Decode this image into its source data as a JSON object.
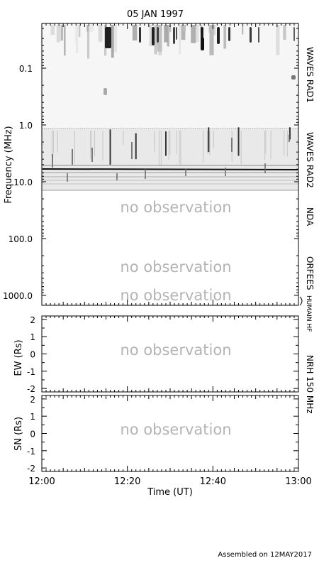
{
  "title": "05 JAN 1997",
  "footer": "Assembled on 12MAY2017",
  "no_observation_text": "no observation",
  "chart_data": [
    {
      "type": "heatmap",
      "name": "dynamic-spectrum",
      "ylabel": "Frequency (MHz)",
      "yscale": "log",
      "y_inverted": true,
      "y_ticks": [
        {
          "value": 0.1,
          "label": "0.1"
        },
        {
          "value": 1,
          "label": "1.0"
        },
        {
          "value": 10,
          "label": "10.0"
        },
        {
          "value": 100,
          "label": "100.0"
        },
        {
          "value": 1000,
          "label": "1000.0"
        }
      ],
      "bands": [
        {
          "instrument": "WAVES RAD1",
          "freq_range": [
            0.02,
            1.1
          ],
          "observed": true
        },
        {
          "instrument": "WAVES RAD2",
          "freq_range": [
            1.1,
            13.8
          ],
          "observed": true
        },
        {
          "instrument": "NDA",
          "freq_range": [
            13.8,
            70
          ],
          "observed": false
        },
        {
          "instrument": "ORFEES",
          "freq_range": [
            70,
            1000
          ],
          "observed": false
        },
        {
          "instrument": "HUMAIN HF",
          "freq_range": [
            1000,
            2000
          ],
          "observed": false
        }
      ],
      "bursts": [
        {
          "time": "12:16",
          "f_low": 1.2,
          "f_high": 5.0
        },
        {
          "time": "12:22",
          "f_low": 1.4,
          "f_high": 4.0
        },
        {
          "time": "12:29",
          "f_low": 1.3,
          "f_high": 3.5
        },
        {
          "time": "12:39",
          "f_low": 1.1,
          "f_high": 3.0
        },
        {
          "time": "12:46",
          "f_low": 1.1,
          "f_high": 3.5
        },
        {
          "time": "12:58",
          "f_low": 1.1,
          "f_high": 1.8
        }
      ]
    },
    {
      "type": "line",
      "name": "nrh-ew",
      "ylabel": "EW (Rs)",
      "ylim": [
        -2.2,
        2.2
      ],
      "y_ticks": [
        2,
        1,
        0,
        -1,
        -2
      ],
      "observed": false,
      "series": []
    },
    {
      "type": "line",
      "name": "nrh-sn",
      "ylabel": "SN (Rs)",
      "ylim": [
        -2.2,
        2.2
      ],
      "y_ticks": [
        2,
        1,
        0,
        -1,
        -2
      ],
      "observed": false,
      "series": []
    }
  ],
  "right_labels": [
    "WAVES RAD1",
    "WAVES RAD2",
    "NDA",
    "ORFEES",
    "HUMAIN HF",
    "NRH 150 MHz"
  ],
  "x_axis": {
    "label": "Time (UT)",
    "tick_labels": [
      "12:00",
      "12:20",
      "12:40",
      "13:00"
    ]
  }
}
